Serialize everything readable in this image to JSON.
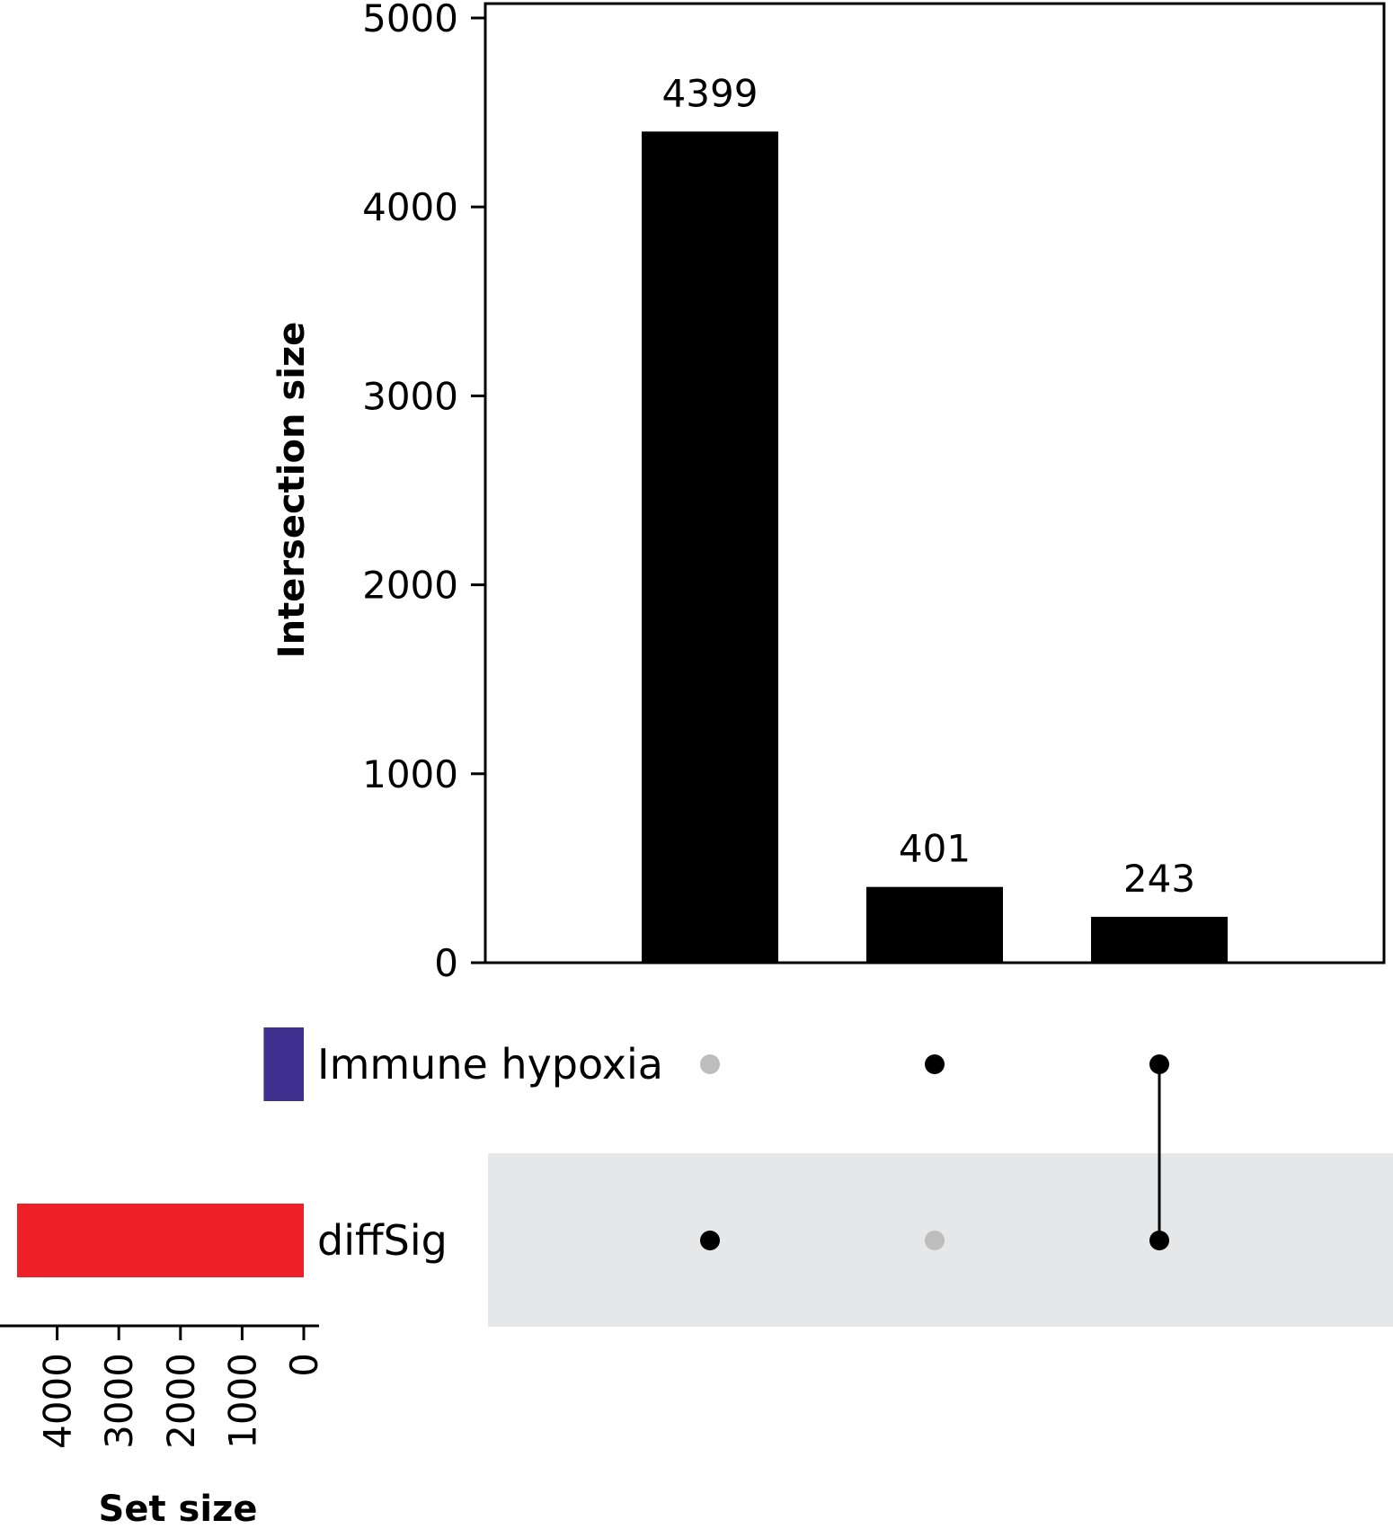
{
  "chart_data": {
    "type": "bar",
    "subtype": "upset",
    "ylabel": "Intersection size",
    "ylim": [
      0,
      5000
    ],
    "yticks": [
      0,
      1000,
      2000,
      3000,
      4000,
      5000
    ],
    "intersections": [
      {
        "value": 4399,
        "label": "4399",
        "members": [
          "diffSig"
        ]
      },
      {
        "value": 401,
        "label": "401",
        "members": [
          "Immune hypoxia"
        ]
      },
      {
        "value": 243,
        "label": "243",
        "members": [
          "Immune hypoxia",
          "diffSig"
        ]
      }
    ],
    "sets": [
      {
        "name": "Immune hypoxia",
        "size": 650,
        "color": "#3f2f8f"
      },
      {
        "name": "diffSig",
        "size": 4650,
        "color": "#ee1f26"
      }
    ],
    "set_size_axis": {
      "label": "Set size",
      "ticks": [
        4000,
        3000,
        2000,
        1000,
        0
      ],
      "lim": [
        0,
        5000
      ]
    },
    "colors": {
      "bar": "#000000",
      "dot_active": "#000000",
      "dot_inactive": "#bdbdbd",
      "row_stripe": "#e6e7e9"
    }
  }
}
